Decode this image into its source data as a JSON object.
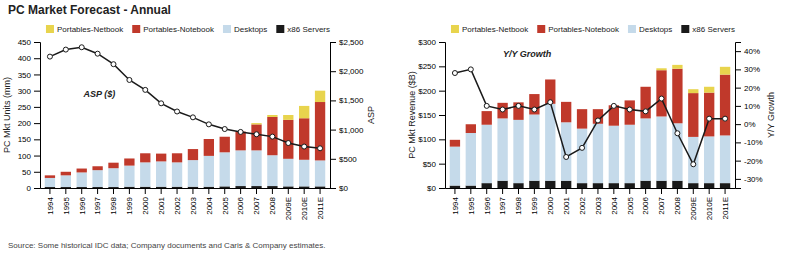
{
  "title": "PC Market Forecast - Annual",
  "annotations": [
    "Source: Some historical IDC data; Company documents and Caris & Company estimates."
  ],
  "chart_data": [
    {
      "type": "bar",
      "stacked": true,
      "grid": false,
      "legend": "top",
      "categories": [
        "1994",
        "1995",
        "1996",
        "1997",
        "1998",
        "1999",
        "2000",
        "2001",
        "2002",
        "2003",
        "2004",
        "2005",
        "2006",
        "2007",
        "2008",
        "2009E",
        "2010E",
        "2011E"
      ],
      "series": [
        {
          "name": "x86 Servers",
          "color": "#1a1a1a",
          "values": [
            3,
            3,
            3,
            3,
            3,
            4,
            4,
            4,
            4,
            4,
            4,
            5,
            6,
            6,
            6,
            5,
            5,
            5
          ]
        },
        {
          "name": "Desktops",
          "color": "#c5daea",
          "values": [
            28,
            36,
            45,
            52,
            58,
            65,
            75,
            78,
            75,
            82,
            95,
            105,
            110,
            110,
            95,
            85,
            82,
            80
          ]
        },
        {
          "name": "Portables-Notebook",
          "color": "#c0392b",
          "values": [
            8,
            11,
            12,
            12,
            17,
            22,
            28,
            24,
            28,
            34,
            52,
            48,
            58,
            80,
            118,
            120,
            128,
            180
          ]
        },
        {
          "name": "Portables-Netbook",
          "color": "#e8d44d",
          "values": [
            0,
            0,
            0,
            0,
            0,
            0,
            0,
            0,
            0,
            0,
            0,
            0,
            0,
            4,
            6,
            15,
            38,
            35
          ]
        },
        {
          "name": "ASP ($)",
          "type": "line",
          "axis": "y2",
          "color": "#1a1a1a",
          "marker": "circle",
          "values": [
            2250,
            2370,
            2410,
            2300,
            2120,
            1850,
            1680,
            1450,
            1310,
            1210,
            1090,
            1010,
            960,
            920,
            880,
            770,
            710,
            680
          ]
        }
      ],
      "ylabel": "PC Mkt Units (mm)",
      "y2label": "ASP",
      "ylim": [
        0,
        450
      ],
      "yticks": [
        0,
        50,
        100,
        150,
        200,
        250,
        300,
        350,
        400,
        450
      ],
      "y2lim": [
        0,
        2500
      ],
      "y2ticks": [
        {
          "value": 0,
          "label": "$0"
        },
        {
          "value": 500,
          "label": "$500"
        },
        {
          "value": 1000,
          "label": "$1,000"
        },
        {
          "value": 1500,
          "label": "$1,500"
        },
        {
          "value": 2000,
          "label": "$2,000"
        },
        {
          "value": 2500,
          "label": "$2,500"
        }
      ]
    },
    {
      "type": "bar",
      "stacked": true,
      "grid": false,
      "legend": "top",
      "categories": [
        "1994",
        "1995",
        "1996",
        "1997",
        "1998",
        "1999",
        "2000",
        "2001",
        "2002",
        "2003",
        "2004",
        "2005",
        "2006",
        "2007",
        "2008",
        "2009E",
        "2010E",
        "2011E"
      ],
      "series": [
        {
          "name": "x86 Servers",
          "color": "#1a1a1a",
          "values": [
            5,
            5,
            10,
            15,
            10,
            15,
            15,
            15,
            10,
            10,
            10,
            10,
            15,
            15,
            15,
            10,
            10,
            10
          ]
        },
        {
          "name": "Desktops",
          "color": "#c5daea",
          "values": [
            80,
            108,
            120,
            128,
            130,
            136,
            158,
            120,
            112,
            122,
            118,
            120,
            128,
            132,
            118,
            95,
            96,
            98
          ]
        },
        {
          "name": "Portables-Notebook",
          "color": "#c0392b",
          "values": [
            14,
            18,
            28,
            32,
            36,
            42,
            50,
            42,
            40,
            30,
            42,
            50,
            65,
            95,
            112,
            90,
            90,
            125
          ]
        },
        {
          "name": "Portables-Netbook",
          "color": "#e8d44d",
          "values": [
            0,
            0,
            0,
            0,
            0,
            0,
            0,
            0,
            0,
            0,
            0,
            0,
            0,
            4,
            8,
            8,
            12,
            16
          ]
        },
        {
          "name": "Y/Y Growth",
          "type": "line",
          "axis": "y2",
          "color": "#1a1a1a",
          "marker": "circle",
          "values": [
            28,
            30,
            10,
            8,
            10,
            8,
            12,
            -18,
            -13,
            2,
            10,
            8,
            7,
            14,
            -5,
            -22,
            3,
            3
          ]
        }
      ],
      "ylabel": "PC Mkt Revenue ($B)",
      "y2label": "Y/Y Growth",
      "ylim": [
        0,
        300
      ],
      "yticks": [
        {
          "value": 0,
          "label": "$0"
        },
        {
          "value": 50,
          "label": "$50"
        },
        {
          "value": 100,
          "label": "$100"
        },
        {
          "value": 150,
          "label": "$150"
        },
        {
          "value": 200,
          "label": "$200"
        },
        {
          "value": 250,
          "label": "$250"
        },
        {
          "value": 300,
          "label": "$300"
        }
      ],
      "y2lim": [
        -35,
        45
      ],
      "y2ticks": [
        {
          "value": -30,
          "label": "-30%"
        },
        {
          "value": -20,
          "label": "-20%"
        },
        {
          "value": -10,
          "label": "-10%"
        },
        {
          "value": 0,
          "label": "0%"
        },
        {
          "value": 10,
          "label": "10%"
        },
        {
          "value": 20,
          "label": "20%"
        },
        {
          "value": 30,
          "label": "30%"
        },
        {
          "value": 40,
          "label": "40%"
        }
      ]
    }
  ]
}
